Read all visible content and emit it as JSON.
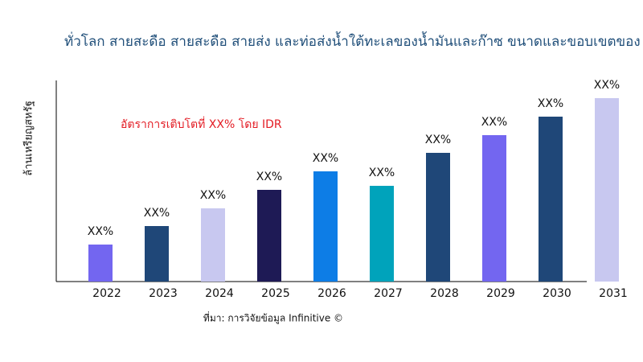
{
  "chart_data": {
    "type": "bar",
    "title": "ทั่วโลก สายสะดือ สายสะดือ สายส่ง และท่อส่งน้ำใต้ทะเลของน้ำมันและก๊าซ ขนาดและขอบเขตของ",
    "y_label": "ล้านเหรียญสหรัฐ",
    "annotation": "อัตราการเติบโตที่ XX% โดย IDR",
    "source": "ที่มา: การวิจัยข้อมูล Infinitive ©",
    "categories": [
      "2022",
      "2023",
      "2024",
      "2025",
      "2026",
      "2027",
      "2028",
      "2029",
      "2030",
      "2031"
    ],
    "values": [
      46,
      69,
      91,
      114,
      137,
      119,
      160,
      182,
      205,
      228
    ],
    "value_labels": [
      "XX%",
      "XX%",
      "XX%",
      "XX%",
      "XX%",
      "XX%",
      "XX%",
      "XX%",
      "XX%",
      "XX%"
    ],
    "colors": [
      "#7366f0",
      "#1f4778",
      "#c8c8f0",
      "#1e1a55",
      "#0d7de6",
      "#00a3bb",
      "#1f4778",
      "#7366f0",
      "#1f4778",
      "#c8c8f0"
    ],
    "ylim": [
      0,
      250
    ]
  }
}
